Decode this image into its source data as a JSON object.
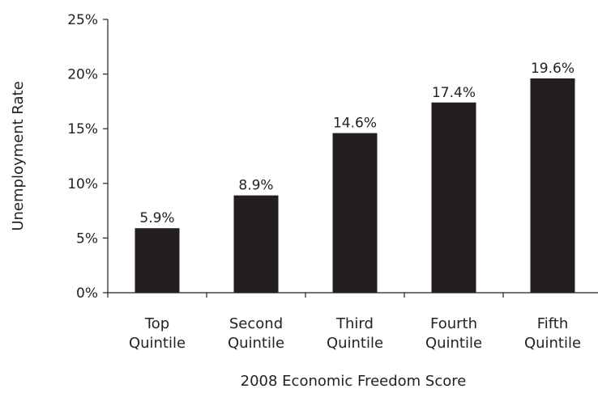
{
  "chart_data": {
    "type": "bar",
    "categories": [
      [
        "Top",
        "Quintile"
      ],
      [
        "Second",
        "Quintile"
      ],
      [
        "Third",
        "Quintile"
      ],
      [
        "Fourth",
        "Quintile"
      ],
      [
        "Fifth",
        "Quintile"
      ]
    ],
    "values": [
      5.9,
      8.9,
      14.6,
      17.4,
      19.6
    ],
    "data_labels": [
      "5.9%",
      "8.9%",
      "14.6%",
      "17.4%",
      "19.6%"
    ],
    "y_ticks": [
      0,
      5,
      10,
      15,
      20,
      25
    ],
    "y_tick_labels": [
      "0%",
      "5%",
      "10%",
      "15%",
      "20%",
      "25%"
    ],
    "ylim": [
      0,
      25
    ],
    "xlabel": "2008 Economic Freedom Score",
    "ylabel": "Unemployment Rate",
    "grid": false,
    "bar_color": "#231f20",
    "axis_color": "#231f20"
  }
}
